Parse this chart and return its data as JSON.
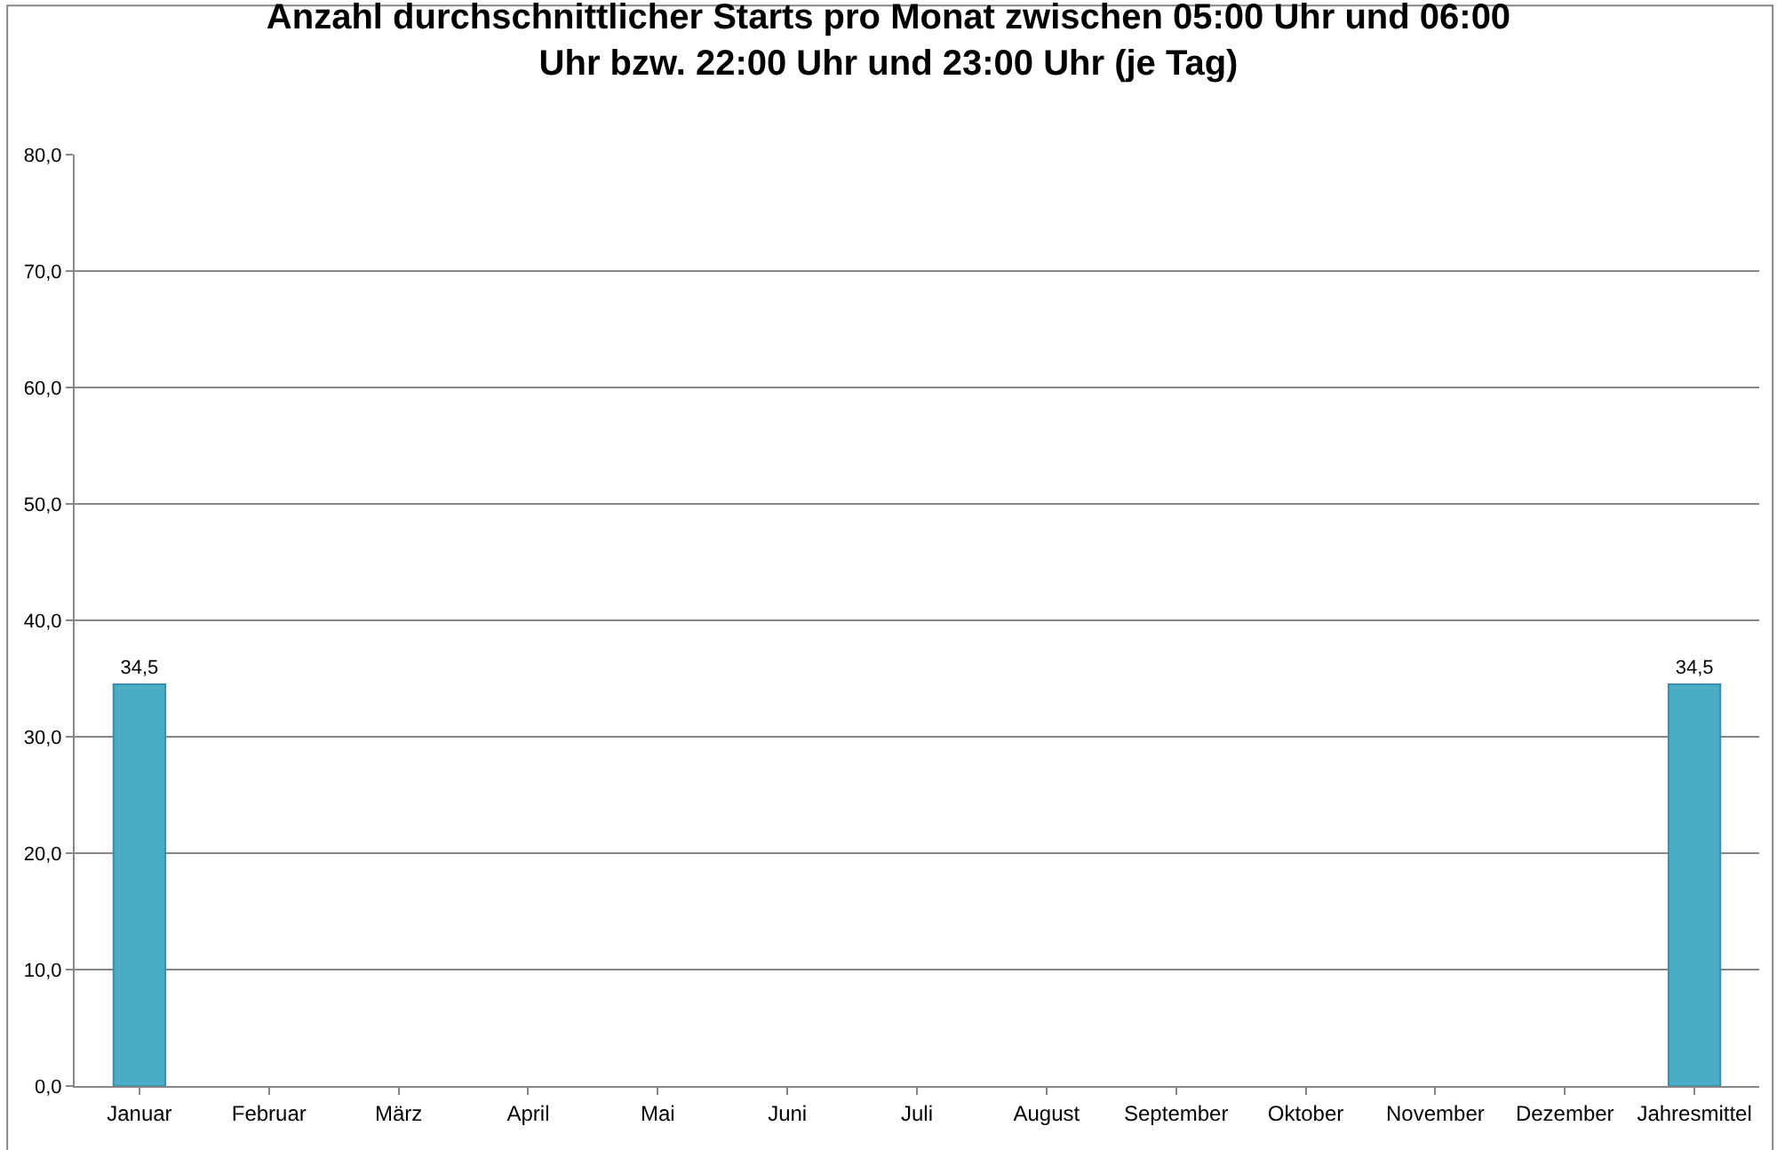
{
  "chart_data": {
    "type": "bar",
    "title": "Anzahl durchschnittlicher Starts pro Monat zwischen 05:00 Uhr und 06:00 Uhr bzw. 22:00 Uhr und 23:00 Uhr (je Tag)",
    "categories": [
      "Januar",
      "Februar",
      "März",
      "April",
      "Mai",
      "Juni",
      "Juli",
      "August",
      "September",
      "Oktober",
      "November",
      "Dezember",
      "Jahresmittel"
    ],
    "values": [
      34.5,
      null,
      null,
      null,
      null,
      null,
      null,
      null,
      null,
      null,
      null,
      null,
      34.5
    ],
    "value_labels": [
      "34,5",
      null,
      null,
      null,
      null,
      null,
      null,
      null,
      null,
      null,
      null,
      null,
      "34,5"
    ],
    "color": "#4bacc6",
    "ylim": [
      0,
      80
    ],
    "yticks": [
      {
        "value": 0,
        "label": "0,0"
      },
      {
        "value": 10,
        "label": "10,0"
      },
      {
        "value": 20,
        "label": "20,0"
      },
      {
        "value": 30,
        "label": "30,0"
      },
      {
        "value": 40,
        "label": "40,0"
      },
      {
        "value": 50,
        "label": "50,0"
      },
      {
        "value": 60,
        "label": "60,0"
      },
      {
        "value": 70,
        "label": "70,0"
      },
      {
        "value": 80,
        "label": "80,0"
      }
    ],
    "grid": "y"
  }
}
